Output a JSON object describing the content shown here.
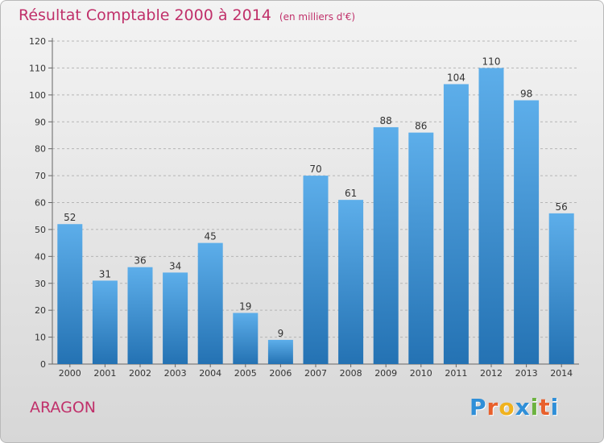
{
  "header": {
    "title": "Résultat Comptable 2000 à 2014",
    "subtitle": "(en milliers d'€)"
  },
  "footer": {
    "commune": "ARAGON",
    "logo_letters": [
      {
        "ch": "P",
        "color": "#2f8fd8"
      },
      {
        "ch": "r",
        "color": "#e8602c"
      },
      {
        "ch": "o",
        "color": "#f0b21e"
      },
      {
        "ch": "x",
        "color": "#2f8fd8"
      },
      {
        "ch": "i",
        "color": "#6cb33f"
      },
      {
        "ch": "t",
        "color": "#e8602c"
      },
      {
        "ch": "i",
        "color": "#2f8fd8"
      }
    ]
  },
  "chart_data": {
    "type": "bar",
    "title": "Résultat Comptable 2000 à 2014",
    "subtitle": "(en milliers d'€)",
    "categories": [
      "2000",
      "2001",
      "2002",
      "2003",
      "2004",
      "2005",
      "2006",
      "2007",
      "2008",
      "2009",
      "2010",
      "2011",
      "2012",
      "2013",
      "2014"
    ],
    "values": [
      52,
      31,
      36,
      34,
      45,
      19,
      9,
      70,
      61,
      88,
      86,
      104,
      110,
      98,
      56
    ],
    "ylim": [
      0,
      120
    ],
    "yticks": [
      0,
      10,
      20,
      30,
      40,
      50,
      60,
      70,
      80,
      90,
      100,
      110,
      120
    ],
    "grid": true,
    "data_labels": true,
    "colors": {
      "bar_top": "#5daeea",
      "bar_bottom": "#2472b3",
      "grid": "#b5b5b5",
      "axis": "#666666"
    }
  }
}
